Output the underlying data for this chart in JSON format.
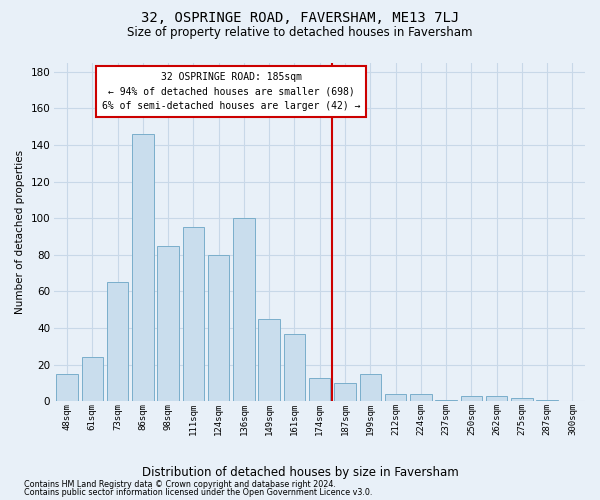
{
  "title": "32, OSPRINGE ROAD, FAVERSHAM, ME13 7LJ",
  "subtitle": "Size of property relative to detached houses in Faversham",
  "xlabel_bottom": "Distribution of detached houses by size in Faversham",
  "ylabel": "Number of detached properties",
  "categories": [
    "48sqm",
    "61sqm",
    "73sqm",
    "86sqm",
    "98sqm",
    "111sqm",
    "124sqm",
    "136sqm",
    "149sqm",
    "161sqm",
    "174sqm",
    "187sqm",
    "199sqm",
    "212sqm",
    "224sqm",
    "237sqm",
    "250sqm",
    "262sqm",
    "275sqm",
    "287sqm",
    "300sqm"
  ],
  "values": [
    15,
    24,
    65,
    146,
    85,
    95,
    80,
    100,
    45,
    37,
    13,
    10,
    15,
    4,
    4,
    1,
    3,
    3,
    2,
    1,
    0
  ],
  "bar_color": "#c9dded",
  "bar_edge_color": "#7aaecb",
  "annotation_text_line1": "32 OSPRINGE ROAD: 185sqm",
  "annotation_text_line2": "← 94% of detached houses are smaller (698)",
  "annotation_text_line3": "6% of semi-detached houses are larger (42) →",
  "annotation_box_color": "#ffffff",
  "annotation_box_edge": "#cc0000",
  "vline_color": "#cc0000",
  "grid_color": "#c8d8e8",
  "bg_color": "#e8f0f8",
  "footnote1": "Contains HM Land Registry data © Crown copyright and database right 2024.",
  "footnote2": "Contains public sector information licensed under the Open Government Licence v3.0.",
  "ylim": [
    0,
    185
  ],
  "yticks": [
    0,
    20,
    40,
    60,
    80,
    100,
    120,
    140,
    160,
    180
  ]
}
